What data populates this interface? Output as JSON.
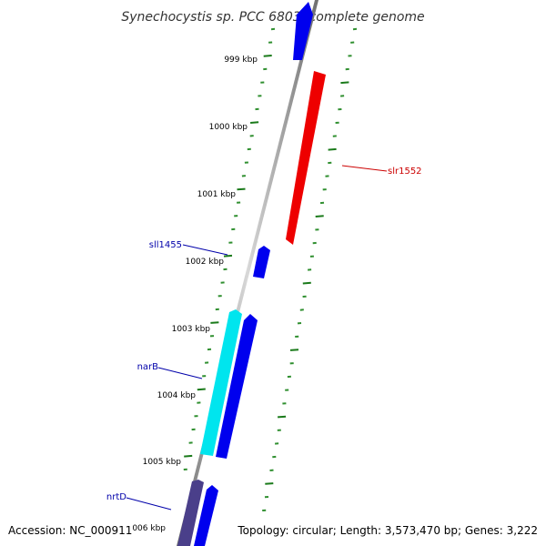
{
  "map": {
    "title": "Synechocystis sp. PCC 6803, complete genome",
    "accession": "Accession: NC_000911",
    "summary": "Topology: circular; Length: 3,573,470 bp; Genes: 3,222"
  },
  "ticks": [
    {
      "label": "999 kbp"
    },
    {
      "label": "1000 kbp"
    },
    {
      "label": "1001 kbp"
    },
    {
      "label": "1002 kbp"
    },
    {
      "label": "1003 kbp"
    },
    {
      "label": "1004 kbp"
    },
    {
      "label": "1005 kbp"
    },
    {
      "label": "006 kbp"
    }
  ],
  "genes": [
    {
      "label": "",
      "strand": "forward",
      "color": "#0000ee"
    },
    {
      "label": "slr1552",
      "strand": "reverse",
      "color": "#ee0000",
      "label_color": "#cc0000"
    },
    {
      "label": "sll1455",
      "strand": "forward",
      "color": "#0000ee",
      "label_color": "#0000aa"
    },
    {
      "label": "",
      "strand": "forward",
      "color": "#0000ee"
    },
    {
      "label": "narB",
      "strand": "forward",
      "color": "#00e5ee",
      "label_color": "#0000aa"
    },
    {
      "label": "nrtD",
      "strand": "forward",
      "color": "#4a3f8a",
      "label_color": "#0000aa"
    },
    {
      "label": "",
      "strand": "forward",
      "color": "#0000ee"
    }
  ],
  "colors": {
    "backbone": "#8c8c8c",
    "tick_major": "#1a7a1a",
    "tick_minor": "#2f8f2f"
  }
}
